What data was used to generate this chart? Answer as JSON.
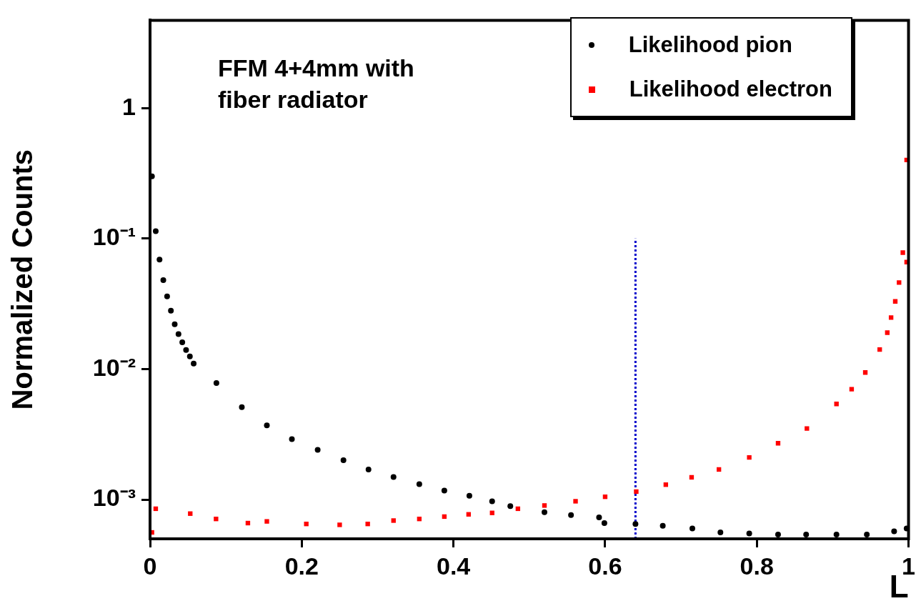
{
  "chart_data": {
    "type": "scatter",
    "xlabel": "L",
    "ylabel": "Normalized Counts",
    "annotations": [
      "FFM 4+4mm with fiber radiator"
    ],
    "log": "y",
    "grid": false,
    "legend": "top right",
    "xlim": [
      0,
      1
    ],
    "xticks": [
      0,
      0.2,
      0.4,
      0.6,
      0.8,
      1
    ],
    "ylim": [
      0.0005,
      4.7
    ],
    "yticks": [
      {
        "value": 0.001,
        "label": "10⁻³"
      },
      {
        "value": 0.01,
        "label": "10⁻²"
      },
      {
        "value": 0.1,
        "label": "10⁻¹"
      },
      1
    ],
    "series": [
      {
        "name": "Likelihood pion",
        "color": "#000000",
        "marker": "circle",
        "x": [
          0.0025,
          0.0075,
          0.0125,
          0.0175,
          0.0225,
          0.0275,
          0.0325,
          0.0375,
          0.0425,
          0.0475,
          0.0525,
          0.0575,
          0.0875,
          0.121,
          0.154,
          0.187,
          0.221,
          0.255,
          0.288,
          0.321,
          0.355,
          0.388,
          0.421,
          0.451,
          0.475,
          0.52,
          0.555,
          0.592,
          0.599,
          0.64,
          0.676,
          0.715,
          0.752,
          0.79,
          0.828,
          0.865,
          0.905,
          0.945,
          0.981,
          0.9975
        ],
        "values": [
          0.3,
          0.114,
          0.069,
          0.048,
          0.036,
          0.028,
          0.022,
          0.0185,
          0.016,
          0.014,
          0.0125,
          0.011,
          0.0078,
          0.0051,
          0.0037,
          0.0029,
          0.0024,
          0.002,
          0.0017,
          0.00149,
          0.00131,
          0.00117,
          0.00107,
          0.00097,
          0.00089,
          0.0008,
          0.00076,
          0.00073,
          0.00066,
          0.00065,
          0.00063,
          0.0006,
          0.00056,
          0.00055,
          0.00054,
          0.00054,
          0.00054,
          0.00054,
          0.00057,
          0.0006
        ]
      },
      {
        "name": "Likelihood electron",
        "color": "#ff0000",
        "marker": "square",
        "x": [
          0.0025,
          0.0075,
          0.053,
          0.087,
          0.129,
          0.154,
          0.206,
          0.25,
          0.287,
          0.321,
          0.355,
          0.388,
          0.42,
          0.451,
          0.485,
          0.52,
          0.561,
          0.6,
          0.641,
          0.68,
          0.714,
          0.75,
          0.79,
          0.828,
          0.866,
          0.905,
          0.925,
          0.943,
          0.962,
          0.972,
          0.977,
          0.9825,
          0.9875,
          0.9925,
          0.9975,
          0.9975
        ],
        "values": [
          0.00056,
          0.00085,
          0.00078,
          0.00071,
          0.00066,
          0.00068,
          0.00065,
          0.00064,
          0.00065,
          0.00069,
          0.00071,
          0.00074,
          0.00077,
          0.00079,
          0.00085,
          0.0009,
          0.00097,
          0.00105,
          0.00115,
          0.0013,
          0.00148,
          0.0017,
          0.0021,
          0.0027,
          0.0035,
          0.0054,
          0.007,
          0.0094,
          0.0141,
          0.019,
          0.0248,
          0.033,
          0.046,
          0.078,
          0.066,
          0.4
        ]
      },
      {
        "type": "line",
        "color": "#0000cc",
        "marker": "none",
        "line_style": "dotted",
        "x": [
          0.64,
          0.64
        ],
        "values": [
          0.0005,
          0.1
        ]
      }
    ]
  }
}
